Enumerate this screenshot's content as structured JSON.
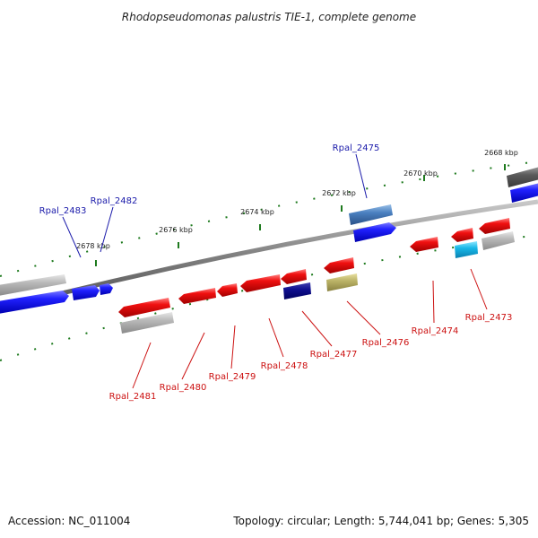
{
  "title": "Rhodopseudomonas palustris TIE-1, complete genome",
  "footer": {
    "accession": "Accession: NC_011004",
    "topology": "Topology: circular; Length: 5,744,041 bp; Genes: 5,305"
  },
  "ticks": [
    {
      "label": "2668 kbp"
    },
    {
      "label": "2670 kbp"
    },
    {
      "label": "2672 kbp"
    },
    {
      "label": "2674 kbp"
    },
    {
      "label": "2676 kbp"
    },
    {
      "label": "2678 kbp"
    }
  ],
  "gene_labels": [
    {
      "id": "Rpal_2475",
      "color": "#1a1aaa"
    },
    {
      "id": "Rpal_2482",
      "color": "#1a1aaa"
    },
    {
      "id": "Rpal_2483",
      "color": "#1a1aaa"
    },
    {
      "id": "Rpal_2473",
      "color": "#cc1111"
    },
    {
      "id": "Rpal_2474",
      "color": "#cc1111"
    },
    {
      "id": "Rpal_2476",
      "color": "#cc1111"
    },
    {
      "id": "Rpal_2477",
      "color": "#cc1111"
    },
    {
      "id": "Rpal_2478",
      "color": "#cc1111"
    },
    {
      "id": "Rpal_2479",
      "color": "#cc1111"
    },
    {
      "id": "Rpal_2480",
      "color": "#cc1111"
    },
    {
      "id": "Rpal_2481",
      "color": "#cc1111"
    }
  ],
  "colors": {
    "backbone": "#7a7a7a",
    "tick": "#1e7a1e",
    "forward_gene": "#1414e6",
    "reverse_gene": "#e61414",
    "ortholog_gray": "#a8a8a8",
    "steelblue": "#3a6ea8",
    "navy": "#0a0a80",
    "olive": "#b8b060",
    "cyan": "#18b8e8"
  }
}
